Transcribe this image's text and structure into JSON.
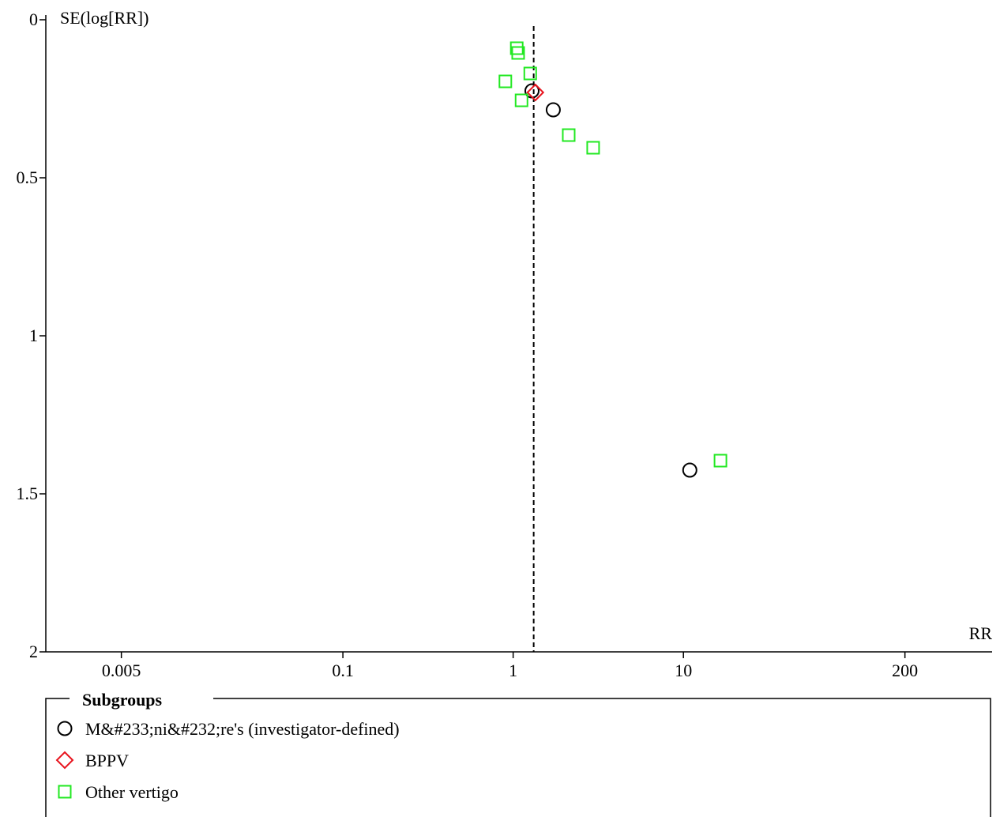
{
  "chart_data": {
    "type": "scatter",
    "x_axis": {
      "label": "RR",
      "scale": "log",
      "range": [
        0.0018,
        650
      ],
      "ticks": [
        {
          "value": 0.005,
          "label": "0.005"
        },
        {
          "value": 0.1,
          "label": "0.1"
        },
        {
          "value": 1,
          "label": "1"
        },
        {
          "value": 10,
          "label": "10"
        },
        {
          "value": 200,
          "label": "200"
        }
      ]
    },
    "y_axis": {
      "label": "SE(log[RR])",
      "range": [
        0,
        2
      ],
      "inverted": true,
      "ticks": [
        {
          "value": 0,
          "label": "0"
        },
        {
          "value": 0.5,
          "label": "0.5"
        },
        {
          "value": 1,
          "label": "1"
        },
        {
          "value": 1.5,
          "label": "1.5"
        },
        {
          "value": 2,
          "label": "2"
        }
      ]
    },
    "reference_line": {
      "x": 1.32,
      "style": "dashed"
    },
    "legend": {
      "title": "Subgroups",
      "placement": "bottom"
    },
    "series": [
      {
        "name": "M&#233;ni&#232;re's (investigator-defined)",
        "marker": "circle",
        "color": "#000000",
        "points": [
          {
            "x": 1.29,
            "y": 0.225
          },
          {
            "x": 1.72,
            "y": 0.285
          },
          {
            "x": 10.9,
            "y": 1.425
          }
        ]
      },
      {
        "name": "BPPV",
        "marker": "diamond",
        "color": "#e8141e",
        "points": [
          {
            "x": 1.35,
            "y": 0.23
          }
        ]
      },
      {
        "name": "Other vertigo",
        "marker": "square",
        "color": "#22e822",
        "points": [
          {
            "x": 1.05,
            "y": 0.09
          },
          {
            "x": 1.07,
            "y": 0.105
          },
          {
            "x": 1.26,
            "y": 0.17
          },
          {
            "x": 0.9,
            "y": 0.195
          },
          {
            "x": 1.12,
            "y": 0.255
          },
          {
            "x": 2.12,
            "y": 0.365
          },
          {
            "x": 2.95,
            "y": 0.405
          },
          {
            "x": 16.5,
            "y": 1.395
          }
        ]
      }
    ]
  }
}
